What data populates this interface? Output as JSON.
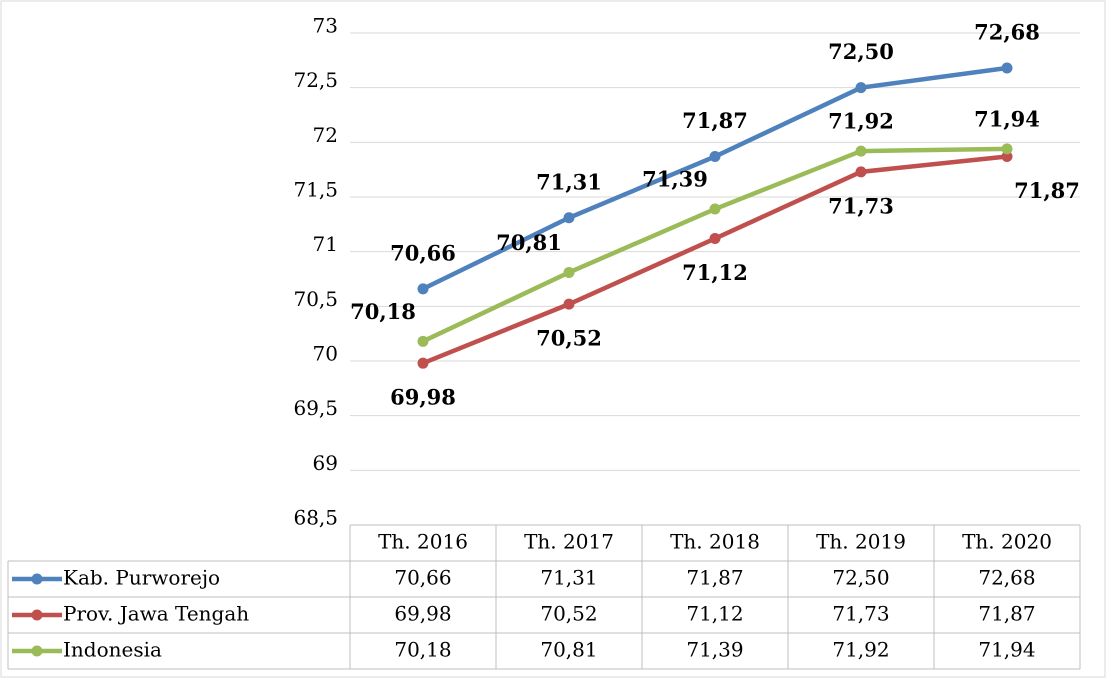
{
  "chart_data": {
    "type": "line",
    "categories": [
      "Th. 2016",
      "Th. 2017",
      "Th. 2018",
      "Th. 2019",
      "Th. 2020"
    ],
    "series": [
      {
        "name": "Kab. Purworejo",
        "color": "#4f81bd",
        "values": [
          70.66,
          71.31,
          71.87,
          72.5,
          72.68
        ],
        "value_labels": [
          "70,66",
          "71,31",
          "71,87",
          "72,50",
          "72,68"
        ]
      },
      {
        "name": "Prov. Jawa Tengah",
        "color": "#c0504d",
        "values": [
          69.98,
          70.52,
          71.12,
          71.73,
          71.87
        ],
        "value_labels": [
          "69,98",
          "70,52",
          "71,12",
          "71,73",
          "71,87"
        ]
      },
      {
        "name": "Indonesia",
        "color": "#9bbb59",
        "values": [
          70.18,
          70.81,
          71.39,
          71.92,
          71.94
        ],
        "value_labels": [
          "70,18",
          "70,81",
          "71,39",
          "71,92",
          "71,94"
        ]
      }
    ],
    "ylim": [
      68.5,
      73
    ],
    "yticks": [
      {
        "value": 68.5,
        "label": "68,5"
      },
      69,
      {
        "value": 69.5,
        "label": "69,5"
      },
      70,
      {
        "value": 70.5,
        "label": "70,5"
      },
      71,
      {
        "value": 71.5,
        "label": "71,5"
      },
      72,
      {
        "value": 72.5,
        "label": "72,5"
      },
      73
    ],
    "grid": true
  }
}
